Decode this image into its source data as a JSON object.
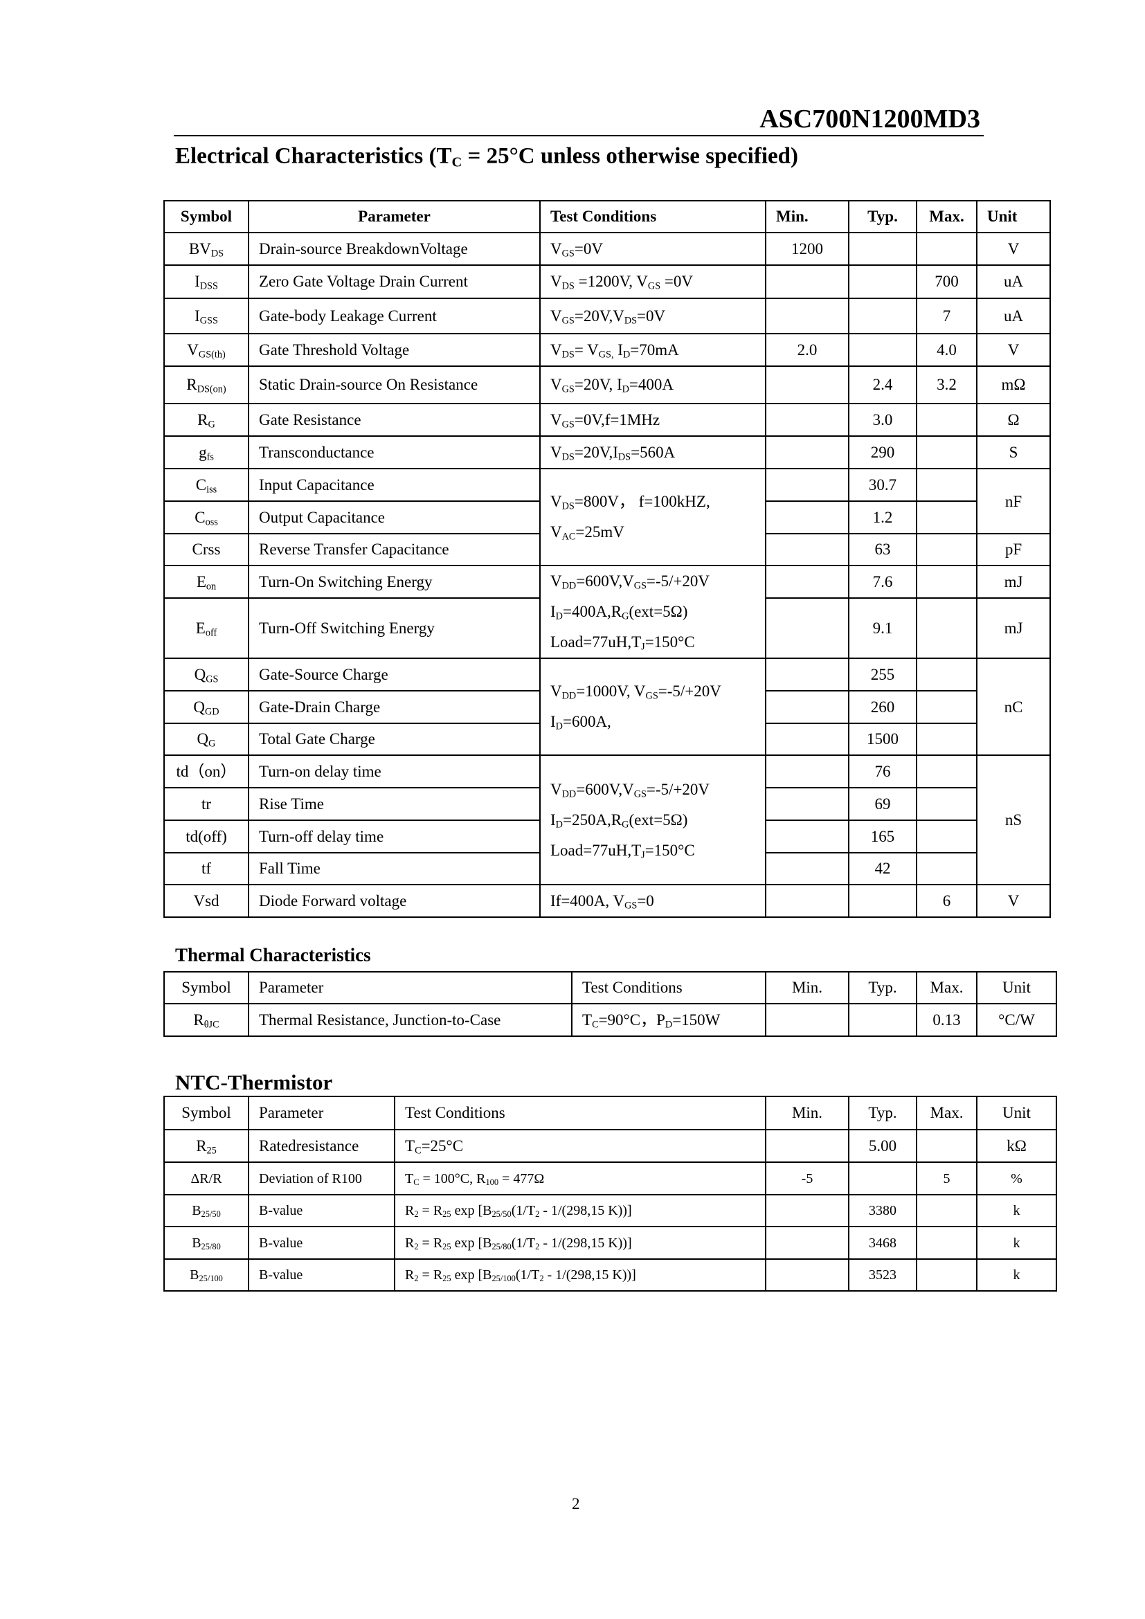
{
  "header": {
    "part_number": "ASC700N1200MD3"
  },
  "electrical": {
    "title": [
      "Electrical Characteristics (T",
      {
        "sub": "C"
      },
      " = 25°C unless otherwise specified)"
    ],
    "columns": [
      "Symbol",
      "Parameter",
      "Test Conditions",
      "Min.",
      "Typ.",
      "Max.",
      "Unit"
    ],
    "rows": [
      {
        "symbol": [
          "BV",
          {
            "sub": "DS"
          }
        ],
        "parameter": "Drain-source BreakdownVoltage",
        "conditions": [
          "V",
          {
            "sub": "GS"
          },
          "=0V"
        ],
        "min": "1200",
        "unit": "V"
      },
      {
        "symbol": [
          "I",
          {
            "sub": "DSS"
          }
        ],
        "parameter": "Zero Gate Voltage Drain Current",
        "conditions": [
          "V",
          {
            "sub": "DS"
          },
          " =1200V, V",
          {
            "sub": "GS"
          },
          " =0V"
        ],
        "max": "700",
        "unit": "uA"
      },
      {
        "symbol": [
          "I",
          {
            "sub": "GSS"
          }
        ],
        "parameter": "Gate-body Leakage Current",
        "conditions": [
          "V",
          {
            "sub": "GS"
          },
          "=20V,V",
          {
            "sub": "DS"
          },
          "=0V"
        ],
        "max": "7",
        "unit": "uA"
      },
      {
        "symbol": [
          "V",
          {
            "sub": "GS(th)"
          }
        ],
        "parameter": "Gate Threshold Voltage",
        "conditions": [
          "V",
          {
            "sub": "DS"
          },
          "= V",
          {
            "sub": "GS,"
          },
          " I",
          {
            "sub": "D"
          },
          "=70mA"
        ],
        "min": "2.0",
        "max": "4.0",
        "unit": "V"
      },
      {
        "symbol": [
          "R",
          {
            "sub": "DS(on)"
          }
        ],
        "parameter": "Static Drain-source On Resistance",
        "conditions": [
          "V",
          {
            "sub": "GS"
          },
          "=20V, I",
          {
            "sub": "D"
          },
          "=400A"
        ],
        "typ": "2.4",
        "max": "3.2",
        "unit": "mΩ"
      },
      {
        "symbol": [
          "R",
          {
            "sub": "G"
          }
        ],
        "parameter": "Gate Resistance",
        "conditions": [
          "V",
          {
            "sub": "GS"
          },
          "=0V,f=1MHz"
        ],
        "typ": "3.0",
        "unit": "Ω"
      },
      {
        "symbol": [
          "g",
          {
            "sub": "fs"
          }
        ],
        "parameter": "Transconductance",
        "conditions": [
          "V",
          {
            "sub": "DS"
          },
          "=20V,I",
          {
            "sub": "DS"
          },
          "=560A"
        ],
        "typ": "290",
        "unit": "S"
      },
      {
        "symbol": [
          "C",
          {
            "sub": "iss"
          }
        ],
        "parameter": "Input Capacitance",
        "conditions": {
          "lines": [
            [
              "V",
              {
                "sub": "DS"
              },
              "=800V，  f=100kHZ,"
            ],
            [
              "V",
              {
                "sub": "AC"
              },
              "=25mV"
            ]
          ]
        },
        "typ": "30.7",
        "unit": "nF"
      },
      {
        "symbol": [
          "C",
          {
            "sub": "oss"
          }
        ],
        "parameter": "Output Capacitance",
        "typ": "1.2"
      },
      {
        "symbol": "Crss",
        "parameter": "Reverse Transfer Capacitance",
        "typ": "63",
        "unit": "pF"
      },
      {
        "symbol": [
          "E",
          {
            "sub": "on"
          }
        ],
        "parameter": "Turn-On Switching Energy",
        "conditions": {
          "lines": [
            [
              "V",
              {
                "sub": "DD"
              },
              "=600V,V",
              {
                "sub": "GS"
              },
              "=-5/+20V"
            ],
            [
              "I",
              {
                "sub": "D"
              },
              "=400A,R",
              {
                "sub": "G"
              },
              "(ext=5Ω)"
            ],
            [
              "Load=77uH,T",
              {
                "sub": "J"
              },
              "=150°C"
            ]
          ]
        },
        "typ": "7.6",
        "unit": "mJ"
      },
      {
        "symbol": [
          "E",
          {
            "sub": "off"
          }
        ],
        "parameter": "Turn-Off Switching Energy",
        "typ": "9.1",
        "unit": "mJ"
      },
      {
        "symbol": [
          "Q",
          {
            "sub": "GS"
          }
        ],
        "parameter": "Gate-Source Charge",
        "conditions": {
          "lines": [
            [
              "V",
              {
                "sub": "DD"
              },
              "=1000V, V",
              {
                "sub": "GS"
              },
              "=-5/+20V"
            ],
            [
              "I",
              {
                "sub": "D"
              },
              "=600A,"
            ]
          ]
        },
        "typ": "255",
        "unit": "nC"
      },
      {
        "symbol": [
          "Q",
          {
            "sub": "GD"
          }
        ],
        "parameter": "Gate-Drain Charge",
        "typ": "260"
      },
      {
        "symbol": [
          "Q",
          {
            "sub": "G"
          }
        ],
        "parameter": "Total Gate Charge",
        "typ": "1500"
      },
      {
        "symbol": "td（on）",
        "parameter": "Turn-on delay time",
        "conditions": {
          "lines": [
            [
              "V",
              {
                "sub": "DD"
              },
              "=600V,V",
              {
                "sub": "GS"
              },
              "=-5/+20V"
            ],
            [
              "I",
              {
                "sub": "D"
              },
              "=250A,R",
              {
                "sub": "G"
              },
              "(ext=5Ω)"
            ],
            [
              "Load=77uH,T",
              {
                "sub": "J"
              },
              "=150°C"
            ]
          ]
        },
        "typ": "76",
        "unit": "nS"
      },
      {
        "symbol": "tr",
        "parameter": "Rise Time",
        "typ": "69"
      },
      {
        "symbol": "td(off)",
        "parameter": "Turn-off delay time",
        "typ": "165"
      },
      {
        "symbol": "tf",
        "parameter": "Fall Time",
        "typ": "42"
      },
      {
        "symbol": "Vsd",
        "parameter": "Diode Forward voltage",
        "conditions": [
          "If=400A, V",
          {
            "sub": "GS"
          },
          "=0"
        ],
        "max": "6",
        "unit": "V"
      }
    ]
  },
  "thermal": {
    "title": "Thermal Characteristics",
    "columns": [
      "Symbol",
      "Parameter",
      "Test Conditions",
      "Min.",
      "Typ.",
      "Max.",
      "Unit"
    ],
    "rows": [
      {
        "symbol": [
          "R",
          {
            "sub": "θJC"
          }
        ],
        "parameter": "Thermal Resistance, Junction-to-Case",
        "conditions": [
          "T",
          {
            "sub": "C"
          },
          "=90°C，P",
          {
            "sub": "D"
          },
          "=150W"
        ],
        "max": "0.13",
        "unit": "°C/W"
      }
    ]
  },
  "ntc": {
    "title": "NTC-Thermistor",
    "columns": [
      "Symbol",
      "Parameter",
      "Test Conditions",
      "Min.",
      "Typ.",
      "Max.",
      "Unit"
    ],
    "rows": [
      {
        "symbol": [
          "R",
          {
            "sub": "25"
          }
        ],
        "parameter": "Ratedresistance",
        "conditions": [
          "T",
          {
            "sub": "C"
          },
          "=25°C"
        ],
        "typ": "5.00",
        "unit": "kΩ"
      },
      {
        "symbol": "ΔR/R",
        "parameter": "Deviation of R100",
        "conditions": [
          "T",
          {
            "sub": "C"
          },
          " = 100°C, R",
          {
            "sub": "100"
          },
          " = 477Ω"
        ],
        "min": "-5",
        "max": "5",
        "unit": "%"
      },
      {
        "symbol": [
          "B",
          {
            "sub": "25/50"
          }
        ],
        "parameter": "B-value",
        "conditions": [
          "R",
          {
            "sub": "2"
          },
          " = R",
          {
            "sub": "25"
          },
          " exp [B",
          {
            "sub": "25/50"
          },
          "(1/T",
          {
            "sub": "2"
          },
          " - 1/(298,15 K))]"
        ],
        "typ": "3380",
        "unit": "k"
      },
      {
        "symbol": [
          "B",
          {
            "sub": "25/80"
          }
        ],
        "parameter": "B-value",
        "conditions": [
          "R",
          {
            "sub": "2"
          },
          " = R",
          {
            "sub": "25"
          },
          " exp [B",
          {
            "sub": "25/80"
          },
          "(1/T",
          {
            "sub": "2"
          },
          " - 1/(298,15 K))]"
        ],
        "typ": "3468",
        "unit": "k"
      },
      {
        "symbol": [
          "B",
          {
            "sub": "25/100"
          }
        ],
        "parameter": "B-value",
        "conditions": [
          "R",
          {
            "sub": "2"
          },
          " = R",
          {
            "sub": "25"
          },
          " exp [B",
          {
            "sub": "25/100"
          },
          "(1/T",
          {
            "sub": "2"
          },
          " - 1/(298,15 K))]"
        ],
        "typ": "3523",
        "unit": "k"
      }
    ]
  },
  "page_number": "2"
}
